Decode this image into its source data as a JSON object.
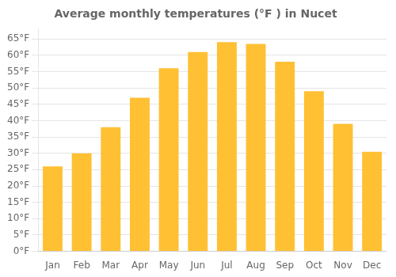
{
  "chart_data": {
    "type": "bar",
    "title": "Average monthly temperatures (°F ) in Nucet",
    "categories": [
      "Jan",
      "Feb",
      "Mar",
      "Apr",
      "May",
      "Jun",
      "Jul",
      "Aug",
      "Sep",
      "Oct",
      "Nov",
      "Dec"
    ],
    "values": [
      26,
      30,
      38,
      47,
      56,
      61,
      64,
      63.5,
      58,
      49,
      39,
      30.5
    ],
    "color": "#FFC033",
    "ylim": [
      0,
      68
    ],
    "yticks": [
      {
        "value": 0,
        "label": "0°F"
      },
      {
        "value": 5,
        "label": "5°F"
      },
      {
        "value": 10,
        "label": "10°F"
      },
      {
        "value": 15,
        "label": "15°F"
      },
      {
        "value": 20,
        "label": "20°F"
      },
      {
        "value": 25,
        "label": "25°F"
      },
      {
        "value": 30,
        "label": "30°F"
      },
      {
        "value": 35,
        "label": "35°F"
      },
      {
        "value": 40,
        "label": "40°F"
      },
      {
        "value": 45,
        "label": "45°F"
      },
      {
        "value": 50,
        "label": "50°F"
      },
      {
        "value": 55,
        "label": "55°F"
      },
      {
        "value": 60,
        "label": "60°F"
      },
      {
        "value": 65,
        "label": "65°F"
      }
    ],
    "grid": true
  }
}
